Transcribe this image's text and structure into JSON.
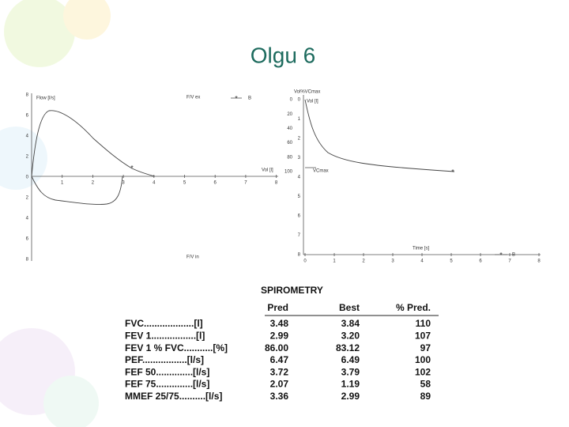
{
  "title": "Olgu 6",
  "flow_volume": {
    "y_label": "Flow [l/s]",
    "x_label": "Vol [l]",
    "expiratory_label": "F/V ex",
    "inspiratory_label": "F/V in",
    "legend": "B",
    "x_ticks": [
      "1",
      "2",
      "3",
      "4",
      "5",
      "6",
      "7",
      "8"
    ],
    "y_ticks": [
      "8",
      "6",
      "4",
      "2",
      "0",
      "2",
      "4",
      "6",
      "8"
    ]
  },
  "volume_time": {
    "y2_label": "Vol%VCmax",
    "y_label": "Vol [l]",
    "vc_label": "VCmax",
    "x_label": "Time [s]",
    "legend": "B",
    "x_ticks": [
      "0",
      "1",
      "2",
      "3",
      "4",
      "5",
      "6",
      "7",
      "8"
    ],
    "y_ticks": [
      "0",
      "1",
      "2",
      "3",
      "4",
      "5",
      "6",
      "7",
      "8"
    ],
    "y2_ticks": [
      "0",
      "20",
      "40",
      "60",
      "80",
      "100"
    ]
  },
  "table": {
    "title": "SPIROMETRY",
    "columns": [
      "Pred",
      "Best",
      "% Pred."
    ],
    "rows": [
      [
        "FVC...................[l]",
        "3.48",
        "3.84",
        "110"
      ],
      [
        "FEV 1.................[l]",
        "2.99",
        "3.20",
        "107"
      ],
      [
        "FEV 1 % FVC...........[%]",
        "86.00",
        "83.12",
        "97"
      ],
      [
        "PEF.................[l/s]",
        "6.47",
        "6.49",
        "100"
      ],
      [
        "FEF 50..............[l/s]",
        "3.72",
        "3.79",
        "102"
      ],
      [
        "FEF 75..............[l/s]",
        "2.07",
        "1.19",
        "58"
      ],
      [
        "MMEF 25/75..........[l/s]",
        "3.36",
        "2.99",
        "89"
      ]
    ]
  }
}
